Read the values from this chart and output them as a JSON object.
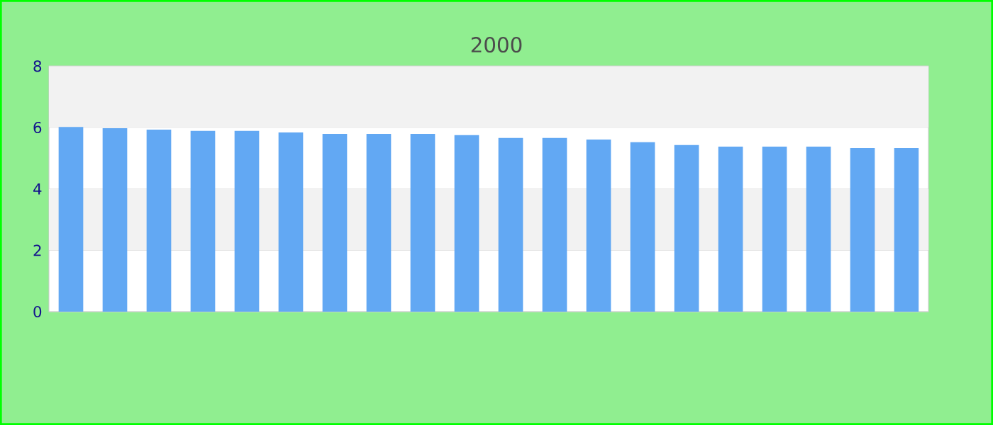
{
  "chart_data": {
    "type": "bar",
    "subtitle": "2000",
    "categories": [
      null,
      null,
      null,
      null,
      null,
      null,
      null,
      null,
      null,
      null,
      null,
      null,
      null,
      null,
      null,
      null,
      null,
      null,
      null,
      null
    ],
    "values": [
      6.02,
      5.98,
      5.93,
      5.89,
      5.89,
      5.84,
      5.79,
      5.79,
      5.79,
      5.75,
      5.66,
      5.66,
      5.61,
      5.52,
      5.43,
      5.38,
      5.38,
      5.38,
      5.33,
      5.33
    ],
    "color": "#62a8f3",
    "ylim": [
      0,
      8
    ],
    "yticks": [
      0,
      2,
      4,
      6,
      8
    ],
    "grid": "y"
  }
}
